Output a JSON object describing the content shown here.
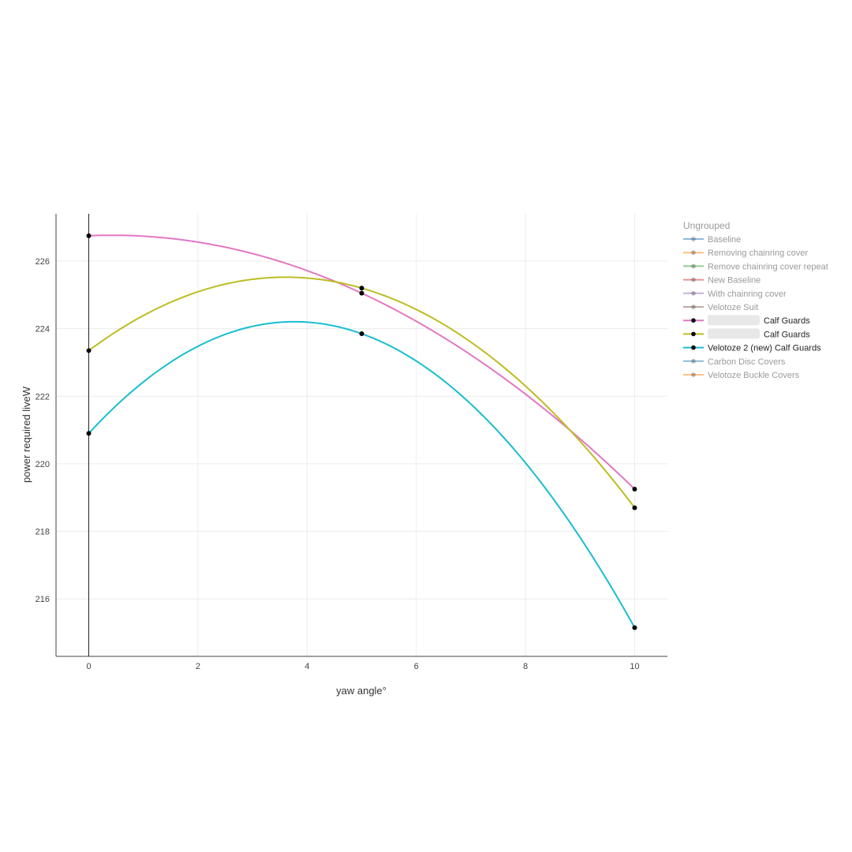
{
  "chart_data": {
    "type": "line",
    "xlabel": "yaw angle°",
    "ylabel": "power required liveW",
    "xlim": [
      -0.6,
      10.6
    ],
    "ylim": [
      214.3,
      227.4
    ],
    "x_ticks": [
      0,
      2,
      4,
      6,
      8,
      10
    ],
    "y_ticks": [
      216,
      218,
      220,
      222,
      224,
      226
    ],
    "grid": true,
    "legend_position": "right",
    "legend_title": "Ungrouped",
    "legend": [
      {
        "name": "Baseline",
        "color": "#1f77b4",
        "active": false
      },
      {
        "name": "Removing chainring cover",
        "color": "#ff7f0e",
        "active": false
      },
      {
        "name": "Remove chainring cover repeat",
        "color": "#2ca02c",
        "active": false
      },
      {
        "name": "New Baseline",
        "color": "#d62728",
        "active": false
      },
      {
        "name": "With chainring cover",
        "color": "#9467bd",
        "active": false
      },
      {
        "name": "Velotoze Suit",
        "color": "#8c564b",
        "active": false
      },
      {
        "name": "Calf Guards",
        "color": "#e377c2",
        "active": true,
        "redacted": true
      },
      {
        "name": "Calf Guards",
        "color": "#bcbd22",
        "active": true,
        "redacted": true
      },
      {
        "name": "Velotoze 2 (new) Calf Guards",
        "color": "#17becf",
        "active": true
      },
      {
        "name": "Carbon Disc Covers",
        "color": "#1f77b4",
        "active": false
      },
      {
        "name": "Velotoze Buckle Covers",
        "color": "#ff7f0e",
        "active": false
      }
    ],
    "series": [
      {
        "legend_index": 6,
        "color": "#e377c2",
        "x": [
          0,
          5,
          10
        ],
        "values": [
          226.75,
          225.05,
          219.25
        ]
      },
      {
        "legend_index": 7,
        "color": "#bcbd22",
        "x": [
          0,
          5,
          10
        ],
        "values": [
          223.35,
          225.2,
          218.7
        ]
      },
      {
        "legend_index": 8,
        "color": "#17becf",
        "x": [
          0,
          5,
          10
        ],
        "values": [
          220.9,
          223.85,
          215.15
        ]
      }
    ]
  }
}
